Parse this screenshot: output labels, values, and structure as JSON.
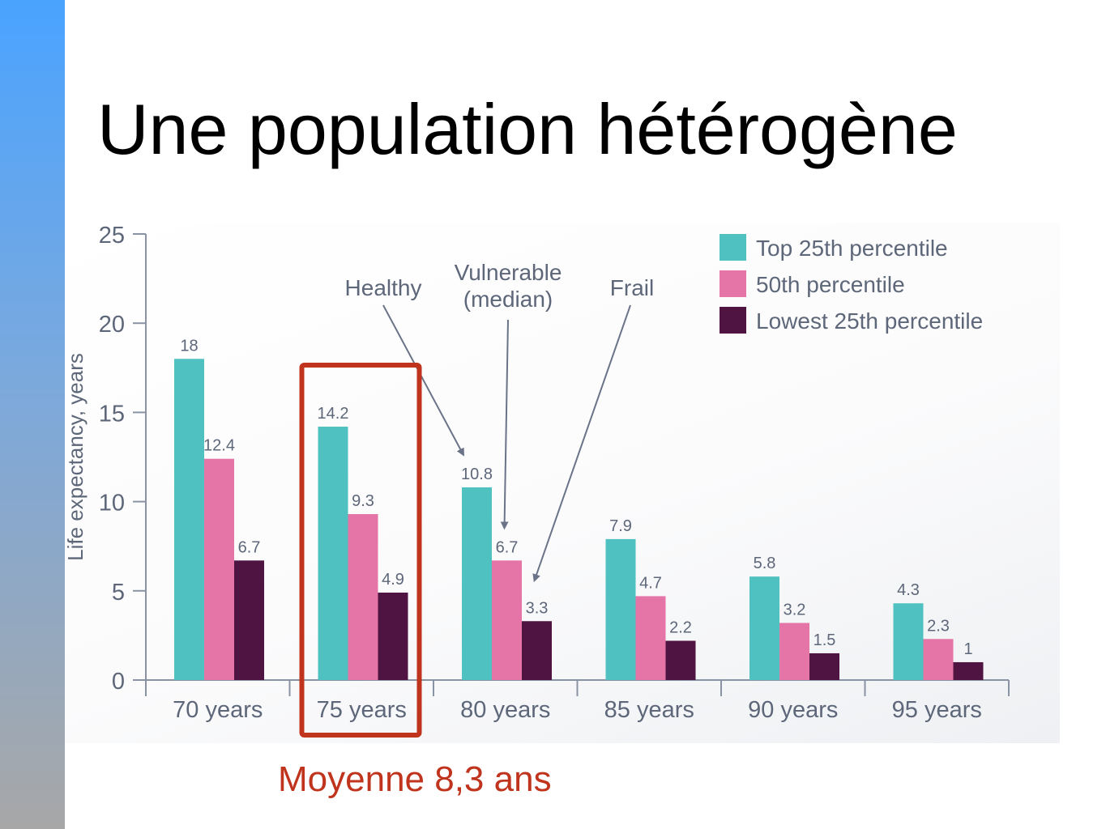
{
  "slide": {
    "title": "Une population hétérogène",
    "caption": "Moyenne 8,3 ans",
    "accent_color": "#c0341d"
  },
  "chart_data": {
    "type": "bar",
    "title": "",
    "ylabel": "Life expectancy, years",
    "xlabel": "",
    "ylim": [
      0,
      25
    ],
    "yticks": [
      "0",
      "5",
      "10",
      "15",
      "20",
      "25"
    ],
    "categories": [
      "70 years",
      "75 years",
      "80 years",
      "85 years",
      "90 years",
      "95 years"
    ],
    "series": [
      {
        "name": "Top 25th percentile",
        "color": "#4fc1c0",
        "values": [
          18,
          14.2,
          10.8,
          7.9,
          5.8,
          4.3
        ]
      },
      {
        "name": "50th percentile",
        "color": "#e574a7",
        "values": [
          12.4,
          9.3,
          6.7,
          4.7,
          3.2,
          2.3
        ]
      },
      {
        "name": "Lowest 25th percentile",
        "color": "#4f1442",
        "values": [
          6.7,
          4.9,
          3.3,
          2.2,
          1.5,
          1
        ]
      }
    ],
    "value_labels": [
      [
        "18",
        "14.2",
        "10.8",
        "7.9",
        "5.8",
        "4.3"
      ],
      [
        "12.4",
        "9.3",
        "6.7",
        "4.7",
        "3.2",
        "2.3"
      ],
      [
        "6.7",
        "4.9",
        "3.3",
        "2.2",
        "1.5",
        "1"
      ]
    ],
    "legend_position": "top-right",
    "grid": false,
    "annotations": [
      {
        "text": [
          "Healthy"
        ],
        "category": "80 years",
        "series": "Top 25th percentile"
      },
      {
        "text": [
          "Vulnerable",
          "(median)"
        ],
        "category": "80 years",
        "series": "50th percentile"
      },
      {
        "text": [
          "Frail"
        ],
        "category": "80 years",
        "series": "Lowest 25th percentile"
      }
    ],
    "highlight": {
      "category": "75 years",
      "color": "#c0341d"
    }
  }
}
